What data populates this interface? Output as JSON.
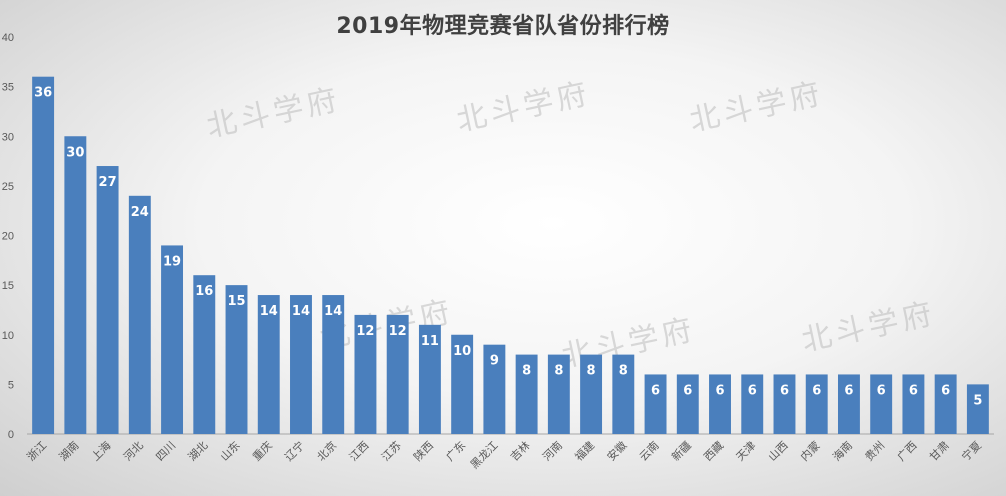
{
  "chart_data": {
    "type": "bar",
    "title": "2019年物理竞赛省队省份排行榜",
    "xlabel": "",
    "ylabel": "",
    "ylim": [
      0,
      40
    ],
    "yticks": [
      0,
      5,
      10,
      15,
      20,
      25,
      30,
      35,
      40
    ],
    "grid": false,
    "legend": "none",
    "bar_color": "#4a7fbd",
    "label_color": "#ffffff",
    "categories": [
      "浙江",
      "湖南",
      "上海",
      "河北",
      "四川",
      "湖北",
      "山东",
      "重庆",
      "辽宁",
      "北京",
      "江西",
      "江苏",
      "陕西",
      "广东",
      "黑龙江",
      "吉林",
      "河南",
      "福建",
      "安徽",
      "云南",
      "新疆",
      "西藏",
      "天津",
      "山西",
      "内蒙",
      "海南",
      "贵州",
      "广西",
      "甘肃",
      "宁夏"
    ],
    "values": [
      36,
      30,
      27,
      24,
      19,
      16,
      15,
      14,
      14,
      14,
      12,
      12,
      11,
      10,
      9,
      8,
      8,
      8,
      8,
      6,
      6,
      6,
      6,
      6,
      6,
      6,
      6,
      6,
      6,
      5
    ]
  },
  "watermark": {
    "text": "北斗学府"
  }
}
